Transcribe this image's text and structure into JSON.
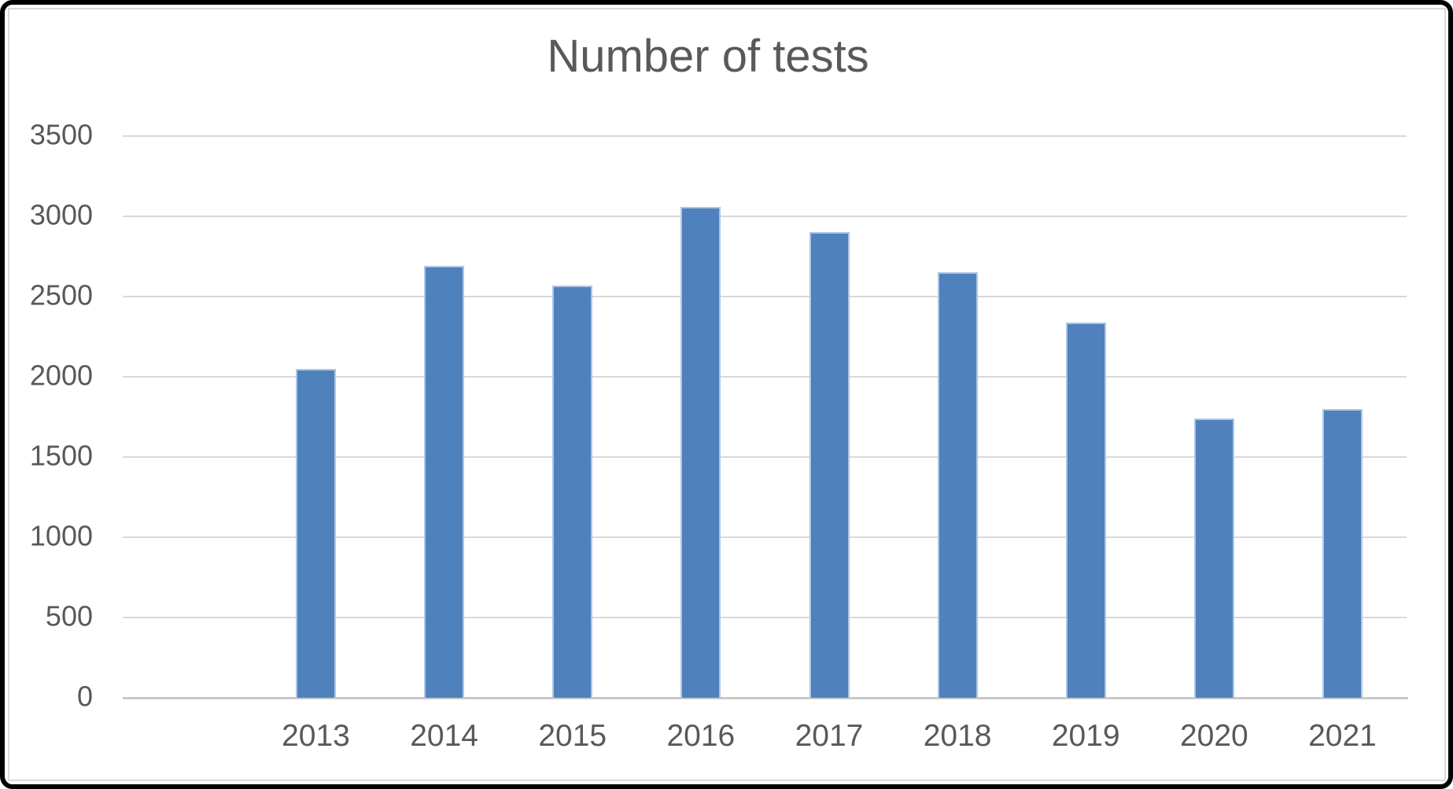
{
  "figure": {
    "kind": "excel-style-column-chart-screenshot"
  },
  "chart_data": {
    "type": "bar",
    "title": "Number of tests",
    "categories": [
      "2013",
      "2014",
      "2015",
      "2016",
      "2017",
      "2018",
      "2019",
      "2020",
      "2021"
    ],
    "values": [
      2050,
      2690,
      2570,
      3060,
      2900,
      2650,
      2340,
      1740,
      1800
    ],
    "xlabel": "",
    "ylabel": "",
    "ylim": [
      0,
      3500
    ],
    "yticks": [
      0,
      500,
      1000,
      1500,
      2000,
      2500,
      3000,
      3500
    ],
    "grid": true,
    "legend": false,
    "colors": {
      "bar_fill": "#4F81BD",
      "bar_border": "#AEC6E2",
      "gridline": "#D9D9D9",
      "axis_line": "#C9C9C9",
      "text": "#595959",
      "background": "#FFFFFF",
      "frame_border": "#000000",
      "chart_border": "#DADADA"
    }
  }
}
